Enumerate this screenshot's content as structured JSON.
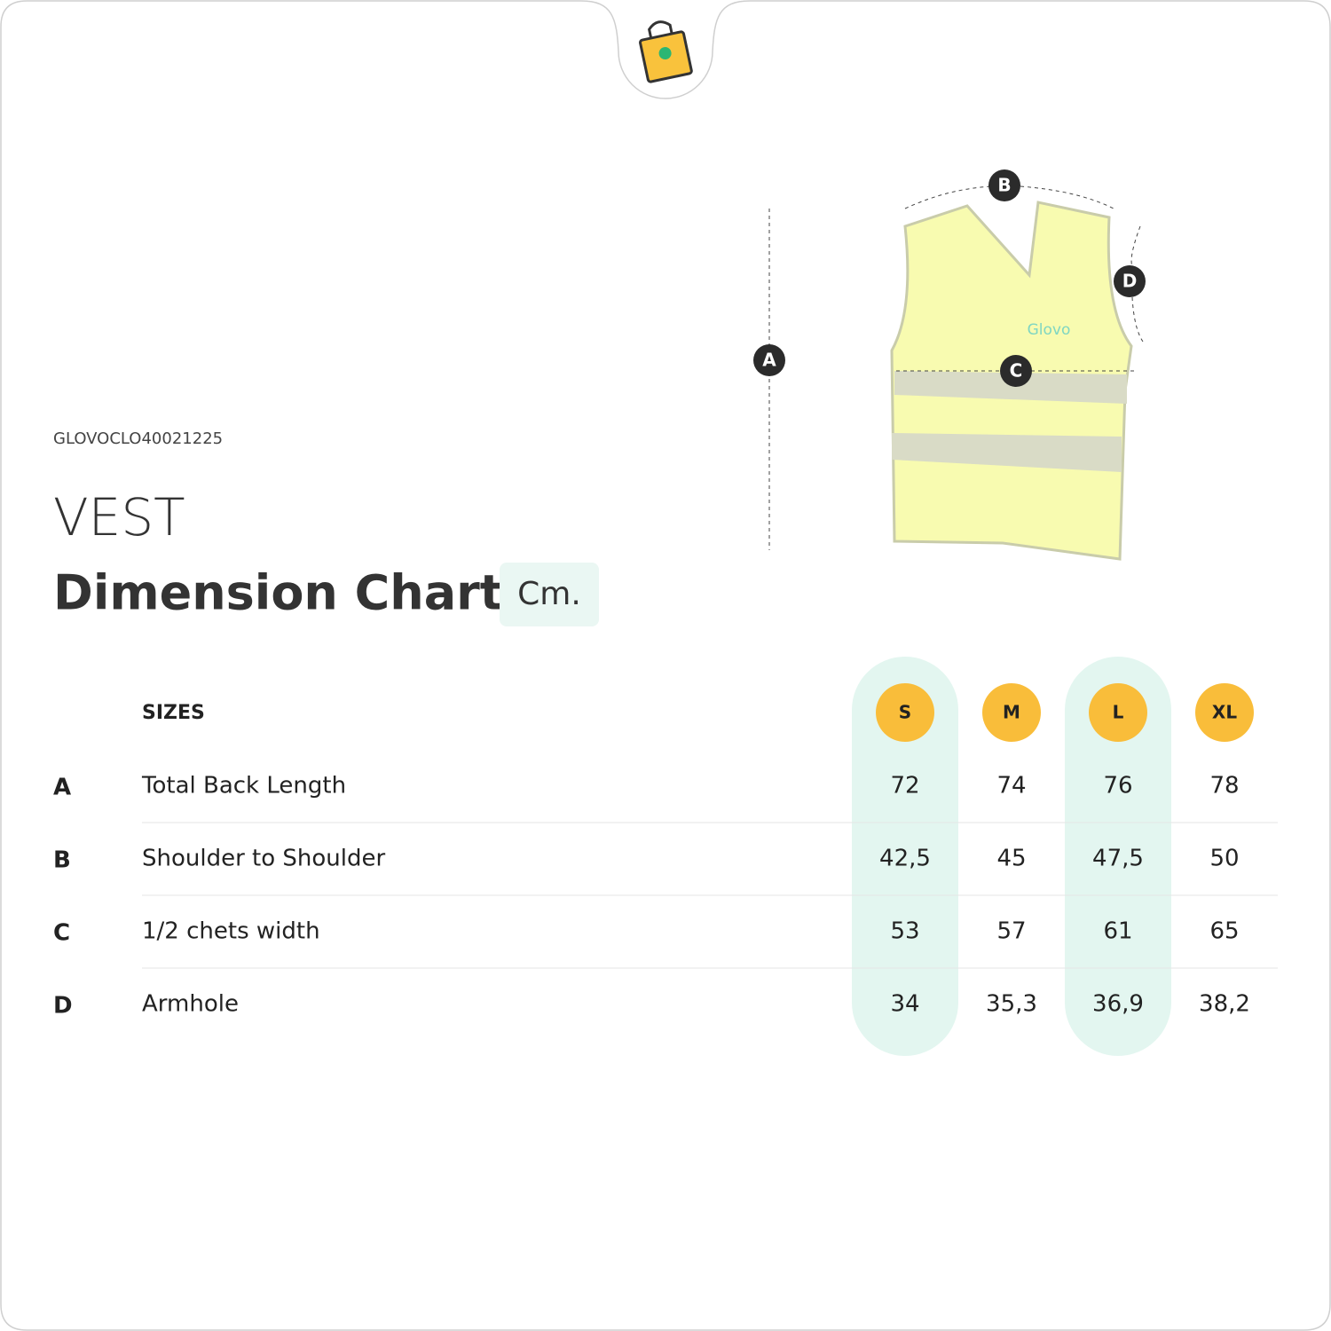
{
  "product_code": "GLOVOCLO40021225",
  "product": "VEST",
  "title": "Dimension Chart",
  "unit": "Cm.",
  "diagram": {
    "logo": "Glovo",
    "markers": [
      "A",
      "B",
      "C",
      "D"
    ]
  },
  "table": {
    "header": "SIZES",
    "sizes": [
      "S",
      "M",
      "L",
      "XL"
    ],
    "rows": [
      {
        "key": "A",
        "label": "Total Back Length",
        "values": [
          "72",
          "74",
          "76",
          "78"
        ]
      },
      {
        "key": "B",
        "label": "Shoulder to Shoulder",
        "values": [
          "42,5",
          "45",
          "47,5",
          "50"
        ]
      },
      {
        "key": "C",
        "label": "1/2 chets width",
        "values": [
          "53",
          "57",
          "61",
          "65"
        ]
      },
      {
        "key": "D",
        "label": "Armhole",
        "values": [
          "34",
          "35,3",
          "36,9",
          "38,2"
        ]
      }
    ]
  }
}
